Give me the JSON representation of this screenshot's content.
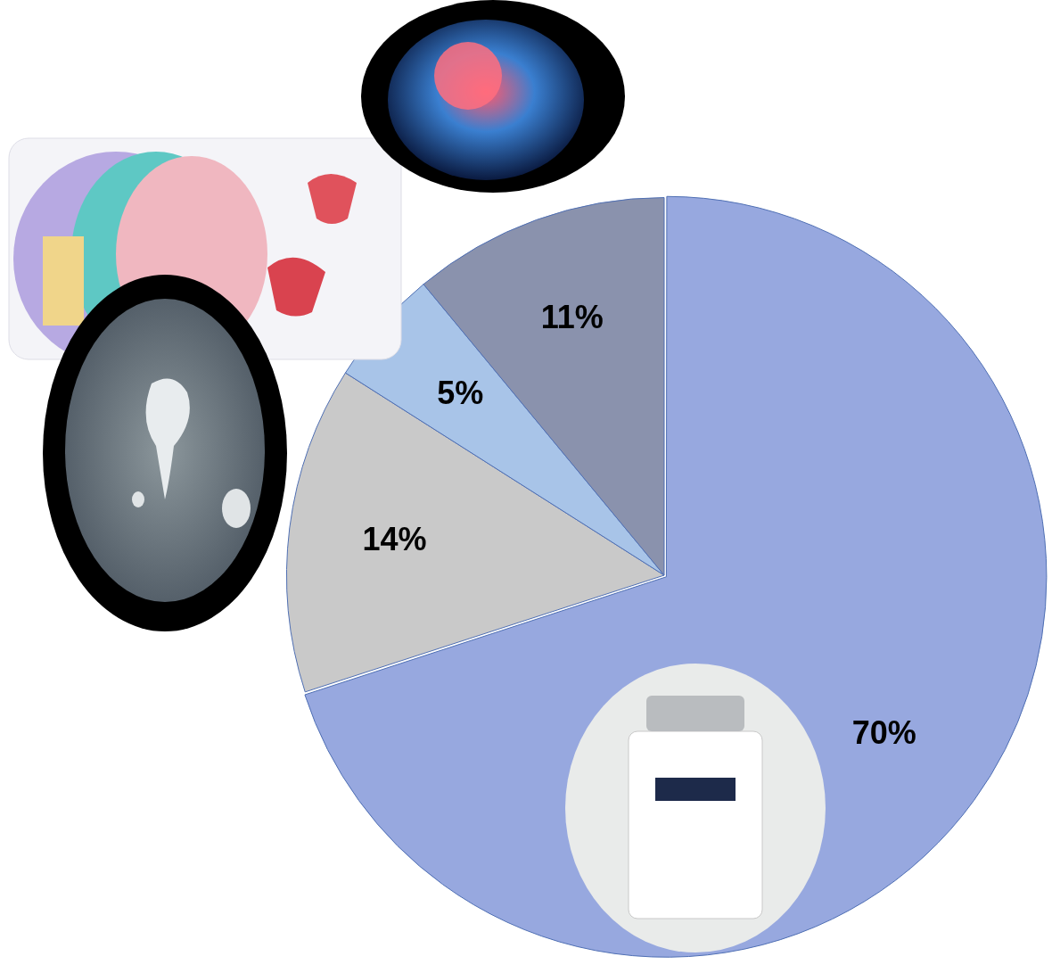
{
  "chart_data": {
    "type": "pie",
    "values": [
      70,
      14,
      5,
      11
    ],
    "value_labels": [
      "70%",
      "14%",
      "5%",
      "11%"
    ],
    "colors": [
      "#97a8df",
      "#c9c9c9",
      "#a8c4e8",
      "#8a92ad"
    ],
    "data_labels": true
  }
}
